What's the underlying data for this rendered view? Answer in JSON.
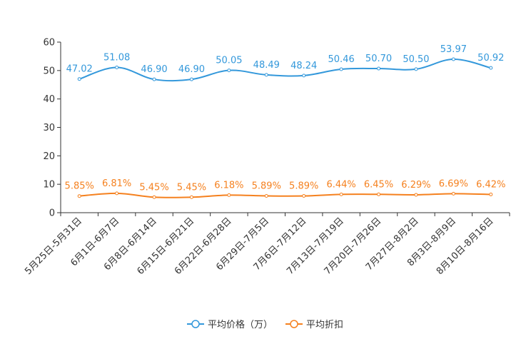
{
  "chart_data": {
    "type": "line",
    "title": "",
    "xlabel": "",
    "ylabel": "",
    "ylim": [
      0,
      60
    ],
    "yticks": [
      0,
      10,
      20,
      30,
      40,
      50,
      60
    ],
    "grid": false,
    "legend_position": "bottom-center",
    "categories": [
      "5月25日-5月31日",
      "6月1日-6月7日",
      "6月8日-6月14日",
      "6月15日-6月21日",
      "6月22日-6月28日",
      "6月29日-7月5日",
      "7月6日-7月12日",
      "7月13日-7月19日",
      "7月20日-7月26日",
      "7月27日-8月2日",
      "8月3日-8月9日",
      "8月10日-8月16日"
    ],
    "series": [
      {
        "name": "平均价格（万）",
        "color": "#3398DB",
        "values": [
          47.02,
          51.08,
          46.9,
          46.9,
          50.05,
          48.49,
          48.24,
          50.46,
          50.7,
          50.5,
          53.97,
          50.92
        ],
        "labels": [
          "47.02",
          "51.08",
          "46.90",
          "46.90",
          "50.05",
          "48.49",
          "48.24",
          "50.46",
          "50.70",
          "50.50",
          "53.97",
          "50.92"
        ]
      },
      {
        "name": "平均折扣",
        "color": "#F5811F",
        "values": [
          5.85,
          6.81,
          5.45,
          5.45,
          6.18,
          5.89,
          5.89,
          6.44,
          6.45,
          6.29,
          6.69,
          6.42
        ],
        "labels": [
          "5.85%",
          "6.81%",
          "5.45%",
          "5.45%",
          "6.18%",
          "5.89%",
          "5.89%",
          "6.44%",
          "6.45%",
          "6.29%",
          "6.69%",
          "6.42%"
        ]
      }
    ]
  }
}
